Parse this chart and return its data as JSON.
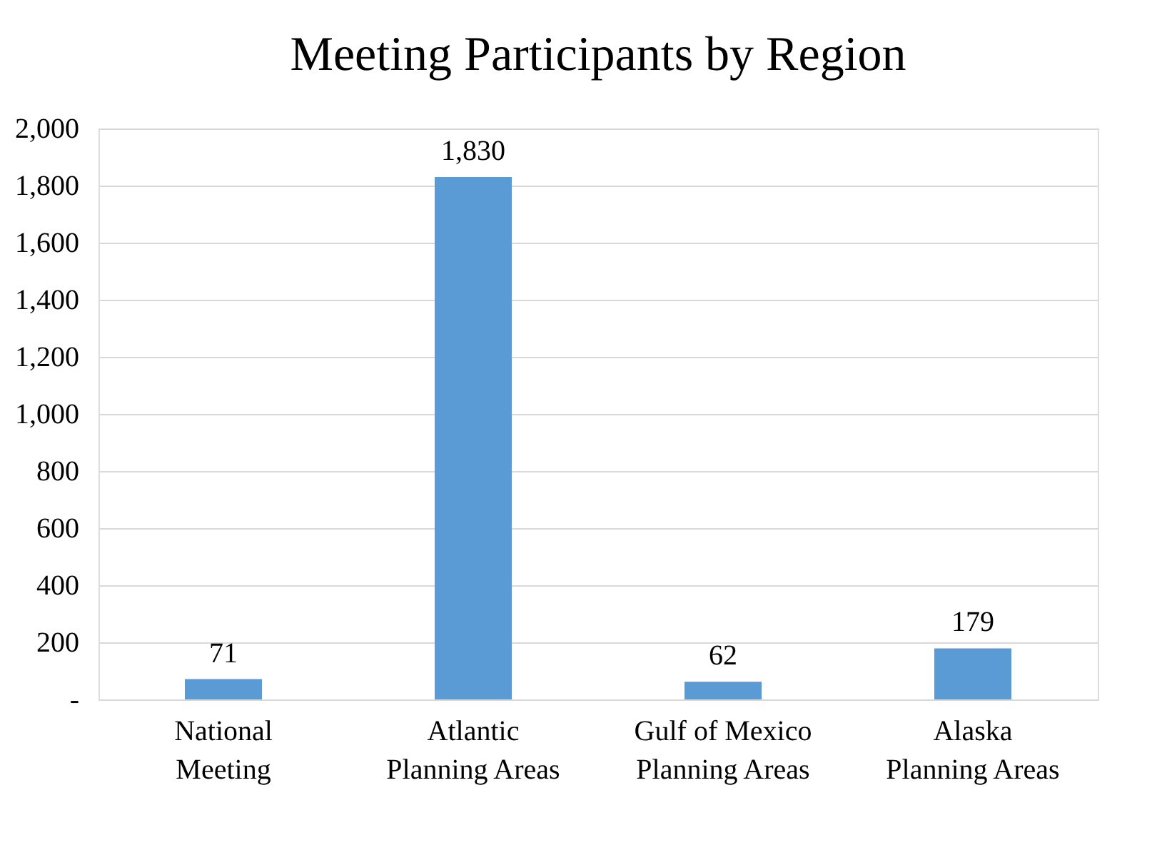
{
  "chart_data": {
    "type": "bar",
    "title": "Meeting Participants by Region",
    "categories": [
      "National Meeting",
      "Atlantic Planning Areas",
      "Gulf of Mexico Planning Areas",
      "Alaska Planning Areas"
    ],
    "values": [
      71,
      1830,
      62,
      179
    ],
    "color": "#5b9bd5",
    "ylim": [
      0,
      2000
    ],
    "yticks": [
      {
        "value": 0,
        "label": "-"
      },
      {
        "value": 200,
        "label": "200"
      },
      {
        "value": 400,
        "label": "400"
      },
      {
        "value": 600,
        "label": "600"
      },
      {
        "value": 800,
        "label": "800"
      },
      {
        "value": 1000,
        "label": "1,000"
      },
      {
        "value": 1200,
        "label": "1,200"
      },
      {
        "value": 1400,
        "label": "1,400"
      },
      {
        "value": 1600,
        "label": "1,600"
      },
      {
        "value": 1800,
        "label": "1,800"
      },
      {
        "value": 2000,
        "label": "2,000"
      }
    ],
    "grid": "y",
    "value_labels": [
      "71",
      "1,830",
      "62",
      "179"
    ]
  }
}
